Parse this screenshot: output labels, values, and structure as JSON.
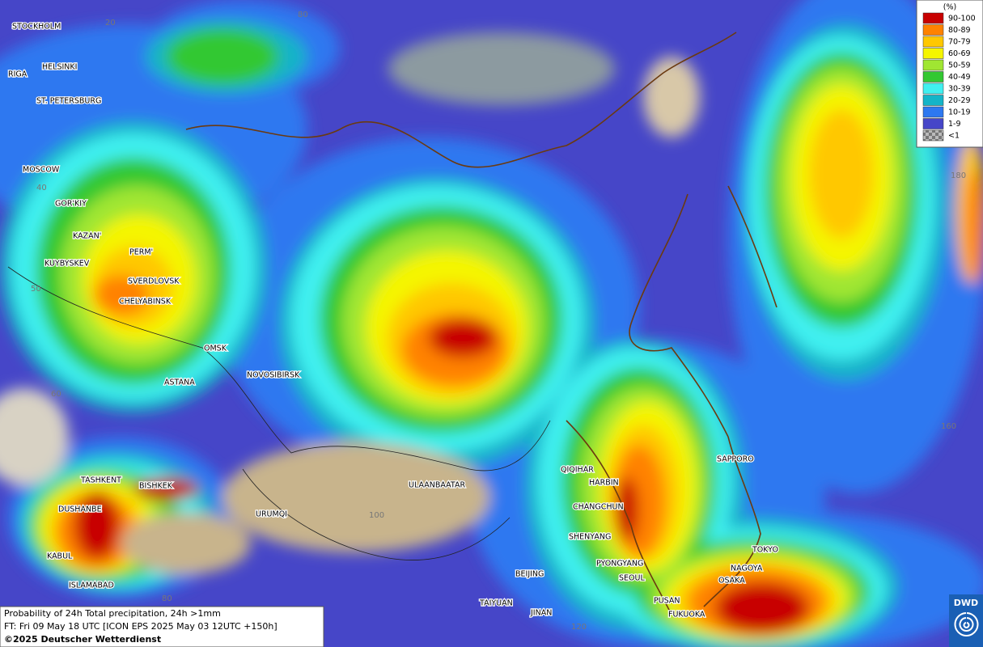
{
  "legend": {
    "title": "(%)",
    "items": [
      {
        "label": "90-100",
        "color": "#c80000"
      },
      {
        "label": "80-89",
        "color": "#ff8200"
      },
      {
        "label": "70-79",
        "color": "#ffc800"
      },
      {
        "label": "60-69",
        "color": "#f5f500"
      },
      {
        "label": "50-59",
        "color": "#a0e632"
      },
      {
        "label": "40-49",
        "color": "#32c832"
      },
      {
        "label": "30-39",
        "color": "#40f0f0"
      },
      {
        "label": "20-29",
        "color": "#14b4c8"
      },
      {
        "label": "10-19",
        "color": "#2d78f0"
      },
      {
        "label": "1-9",
        "color": "#4646c8"
      },
      {
        "label": "<1",
        "color": "#9a9a9a"
      }
    ]
  },
  "cities": [
    "STOCKHOLM",
    "HELSINKI",
    "RIGA",
    "ST. PETERSBURG",
    "MOSCOW",
    "GOR'KIY",
    "KAZAN'",
    "PERM'",
    "KUYBYSKEV",
    "SVERDLOVSK",
    "CHELYABINSK",
    "OMSK",
    "NOVOSIBIRSK",
    "ASTANA",
    "TASHKENT",
    "BISHKEK",
    "DUSHANBE",
    "URUMQI",
    "ULAANBAATAR",
    "QIQIHAR",
    "HARBIN",
    "CHANGCHUN",
    "SHENYANG",
    "PYONGYANG",
    "SEOUL",
    "BEIJING",
    "KABUL",
    "ISLAMABAD",
    "TAIYUAN",
    "JINAN",
    "PUSAN",
    "FUKUOKA",
    "OSAKA",
    "NAGOYA",
    "TOKYO",
    "SAPPORO"
  ],
  "grid_labels": [
    "20",
    "80",
    "40",
    "50",
    "60",
    "180",
    "160",
    "100",
    "80",
    "120"
  ],
  "footer": {
    "title": "Probability of 24h Total precipitation, 24h >1mm",
    "forecast_time": "FT: Fri 09 May 18 UTC [ICON EPS 2025 May 03 12UTC +150h]",
    "copyright": "©2025 Deutscher Wetterdienst"
  },
  "logo": "DWD"
}
